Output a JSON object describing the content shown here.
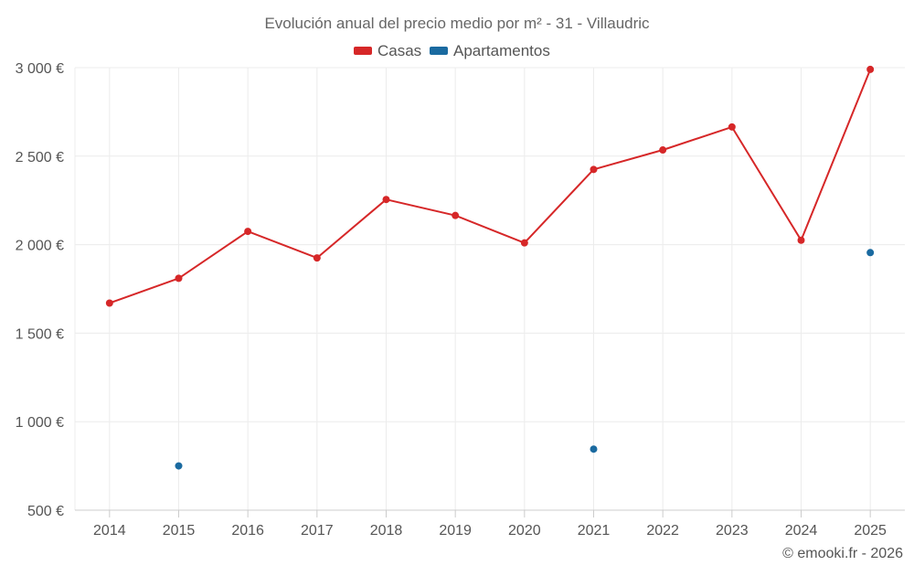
{
  "chart_data": {
    "type": "line",
    "title": "Evolución anual del precio medio por m² - 31 - Villaudric",
    "categories": [
      "2014",
      "2015",
      "2016",
      "2017",
      "2018",
      "2019",
      "2020",
      "2021",
      "2022",
      "2023",
      "2024",
      "2025"
    ],
    "ylim": [
      500,
      3000
    ],
    "yticks": [
      500,
      1000,
      1500,
      2000,
      2500,
      3000
    ],
    "ytick_labels": [
      "500 €",
      "1 000 €",
      "1 500 €",
      "2 000 €",
      "2 500 €",
      "3 000 €"
    ],
    "xlabel": "",
    "ylabel": "",
    "grid": true,
    "legend_position": "top-center",
    "series": [
      {
        "name": "Casas",
        "color": "#d62728",
        "values": [
          1670,
          1810,
          2075,
          1925,
          2255,
          2165,
          2010,
          2425,
          2535,
          2665,
          2025,
          2990
        ]
      },
      {
        "name": "Apartamentos",
        "color": "#1a6aa0",
        "values": [
          null,
          750,
          null,
          null,
          null,
          null,
          null,
          845,
          null,
          null,
          null,
          1955
        ]
      }
    ],
    "credit": "© emooki.fr - 2026"
  }
}
